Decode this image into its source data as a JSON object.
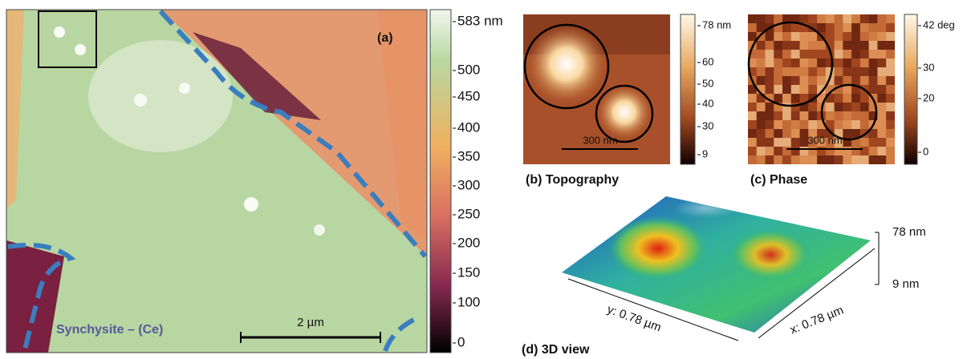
{
  "panel_a": {
    "label": "(a)",
    "colorbar_ticks": [
      "583 nm",
      "500",
      "450",
      "400",
      "350",
      "300",
      "250",
      "200",
      "150",
      "100",
      "0"
    ],
    "mineral": "Synchysite – (Ce)",
    "scale_bar": "2 µm"
  },
  "panel_b": {
    "caption": "(b) Topography",
    "colorbar_ticks": [
      "78 nm",
      "60",
      "50",
      "40",
      "30",
      "9"
    ],
    "scale_bar": "300 nm"
  },
  "panel_c": {
    "caption": "(c) Phase",
    "colorbar_ticks": [
      "42 deg",
      "30",
      "20",
      "0"
    ],
    "scale_bar": "300 nm"
  },
  "panel_d": {
    "caption": "(d) 3D view",
    "z_labels": [
      "78 nm",
      "9 nm"
    ],
    "y_axis": "y: 0.78 µm",
    "x_axis": "x: 0.78 µm"
  }
}
